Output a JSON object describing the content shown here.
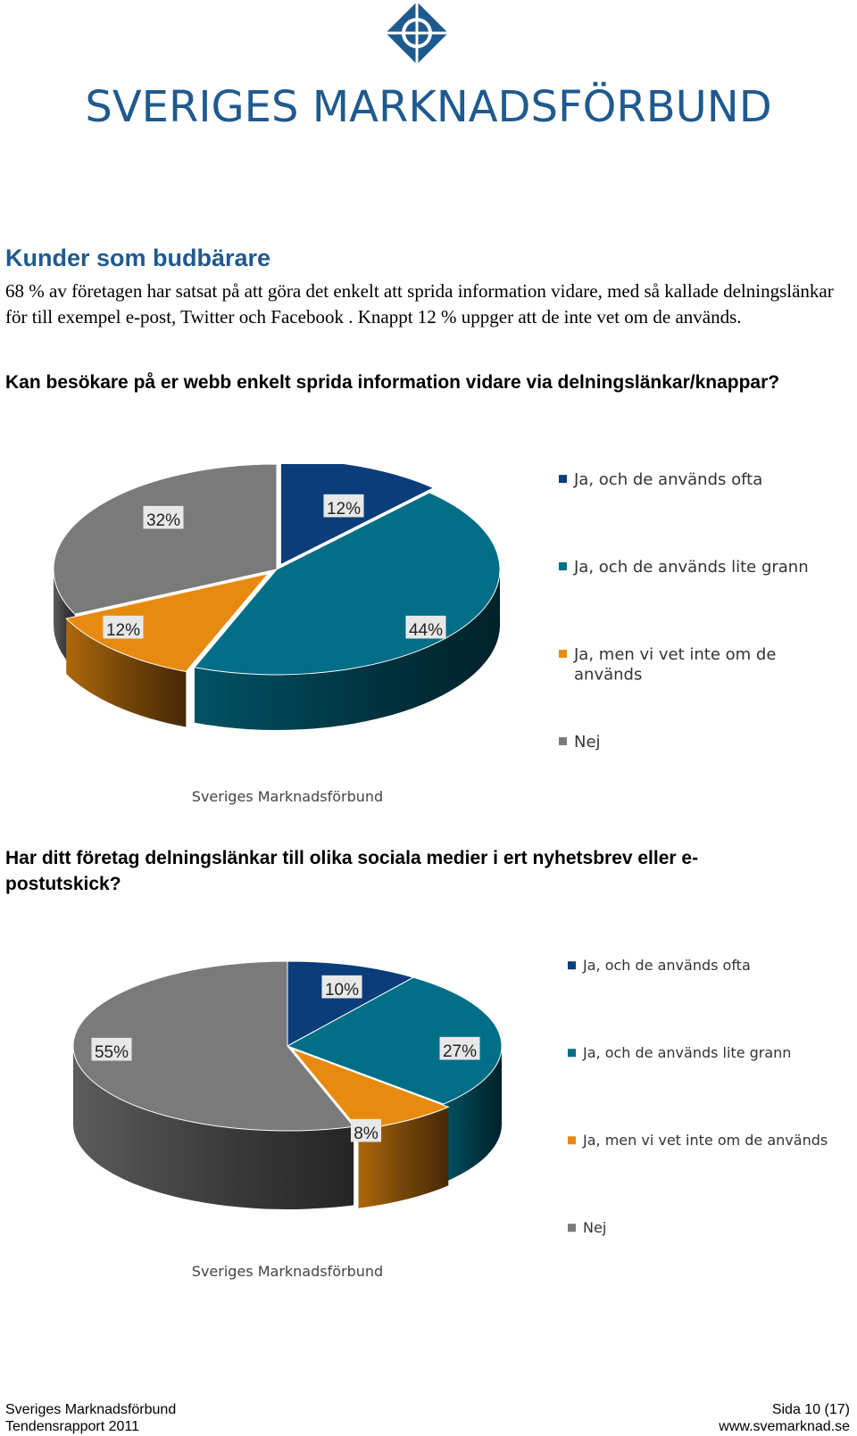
{
  "header": {
    "brand_name": "SVERIGES MARKNADSFÖRBUND"
  },
  "section": {
    "title": "Kunder som budbärare",
    "intro": "68 % av företagen har satsat på att göra det enkelt att sprida information vidare, med så kallade delningslänkar för till exempel e-post, Twitter och Facebook . Knappt 12 % uppger att de inte vet om de används."
  },
  "questions": [
    "Kan besökare på er webb enkelt sprida information vidare via delningslänkar/knappar?",
    "Har ditt företag delningslänkar till olika sociala medier i ert nyhetsbrev eller e-postutskick?"
  ],
  "colors": {
    "brand": "#1f5a8e",
    "dark_blue": "#0a3d7a",
    "teal": "#006e87",
    "orange": "#e88a0f",
    "gray": "#7a7a7a"
  },
  "chart_data": [
    {
      "type": "pie",
      "categories": [
        "Ja, och de används ofta",
        "Ja, och de används lite grann",
        "Ja, men vi vet inte om de används",
        "Nej"
      ],
      "legend_lines": [
        [
          "Ja, och de används ofta"
        ],
        [
          "Ja, och de används lite grann"
        ],
        [
          "Ja, men vi vet inte om de",
          "används"
        ],
        [
          "Nej"
        ]
      ],
      "values": [
        12,
        44,
        12,
        32
      ],
      "data_labels": [
        "12%",
        "44%",
        "12%",
        "32%"
      ],
      "colors": [
        "#0a3d7a",
        "#006e87",
        "#e88a0f",
        "#7a7a7a"
      ],
      "source": "Sveriges Marknadsförbund",
      "legend": "right",
      "three_d": true
    },
    {
      "type": "pie",
      "categories": [
        "Ja, och de används ofta",
        "Ja, och de används lite grann",
        "Ja, men vi vet inte om de används",
        "Nej"
      ],
      "legend_lines": [
        [
          "Ja, och de används ofta"
        ],
        [
          "Ja, och de används lite grann"
        ],
        [
          "Ja, men vi vet inte om de används"
        ],
        [
          "Nej"
        ]
      ],
      "values": [
        10,
        27,
        8,
        55
      ],
      "data_labels": [
        "10%",
        "27%",
        "8%",
        "55%"
      ],
      "colors": [
        "#0a3d7a",
        "#006e87",
        "#e88a0f",
        "#7a7a7a"
      ],
      "source": "Sveriges Marknadsförbund",
      "legend": "right",
      "three_d": true
    }
  ],
  "footer": {
    "org": "Sveriges Marknadsförbund",
    "report": "Tendensrapport 2011",
    "page": "Sida 10 (17)",
    "url": "www.svemarknad.se"
  }
}
